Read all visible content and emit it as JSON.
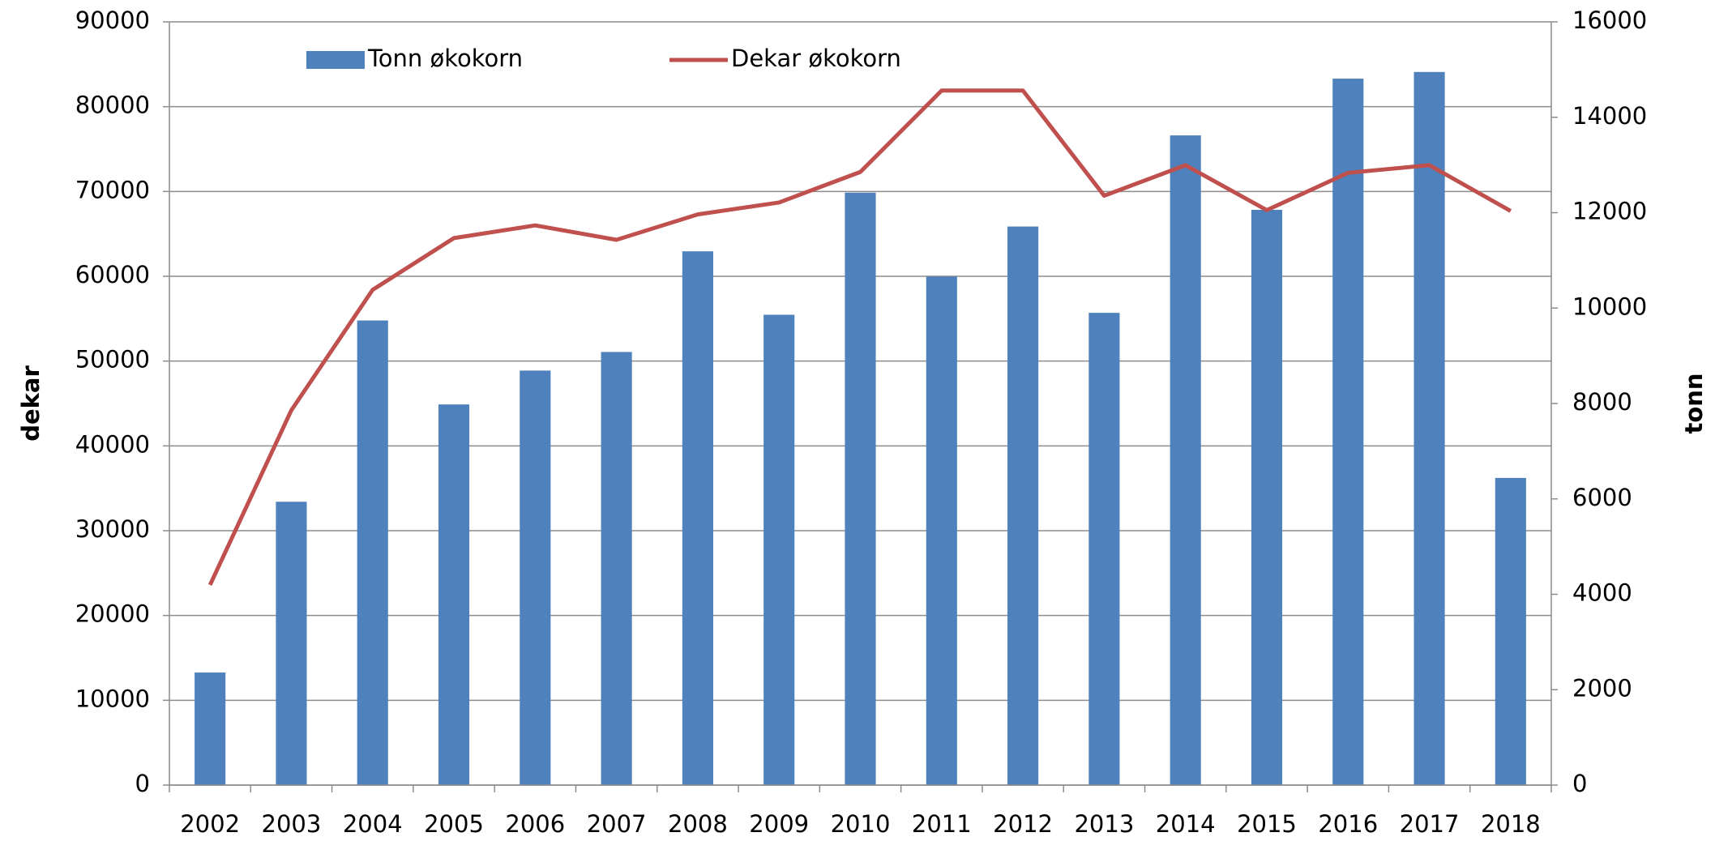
{
  "chart_data": {
    "type": "bar",
    "categories": [
      "2002",
      "2003",
      "2004",
      "2005",
      "2006",
      "2007",
      "2008",
      "2009",
      "2010",
      "2011",
      "2012",
      "2013",
      "2014",
      "2015",
      "2016",
      "2017",
      "2018"
    ],
    "series": [
      {
        "name": "Tonn økokorn",
        "type": "bar",
        "axis": "y2",
        "color": "#4f81bd",
        "values": [
          2360,
          5940,
          9740,
          7980,
          8690,
          9080,
          11190,
          9860,
          12420,
          10660,
          11710,
          9900,
          13620,
          12060,
          14810,
          14950,
          6440
        ]
      },
      {
        "name": "Dekar økokorn",
        "type": "line",
        "color": "#c0504d",
        "values": [
          23600,
          44200,
          58400,
          64500,
          66000,
          64300,
          67300,
          68700,
          72300,
          81900,
          81900,
          69500,
          73100,
          67800,
          72200,
          73100,
          67700
        ]
      }
    ],
    "ylabel": "dekar",
    "y2label": "tonn",
    "ylim": [
      0,
      90000
    ],
    "yticks": [
      0,
      10000,
      20000,
      30000,
      40000,
      50000,
      60000,
      70000,
      80000,
      90000
    ],
    "y2lim": [
      0,
      16000
    ],
    "y2ticks": [
      0,
      2000,
      4000,
      6000,
      8000,
      10000,
      12000,
      14000,
      16000
    ],
    "grid": true,
    "legend": "top"
  }
}
